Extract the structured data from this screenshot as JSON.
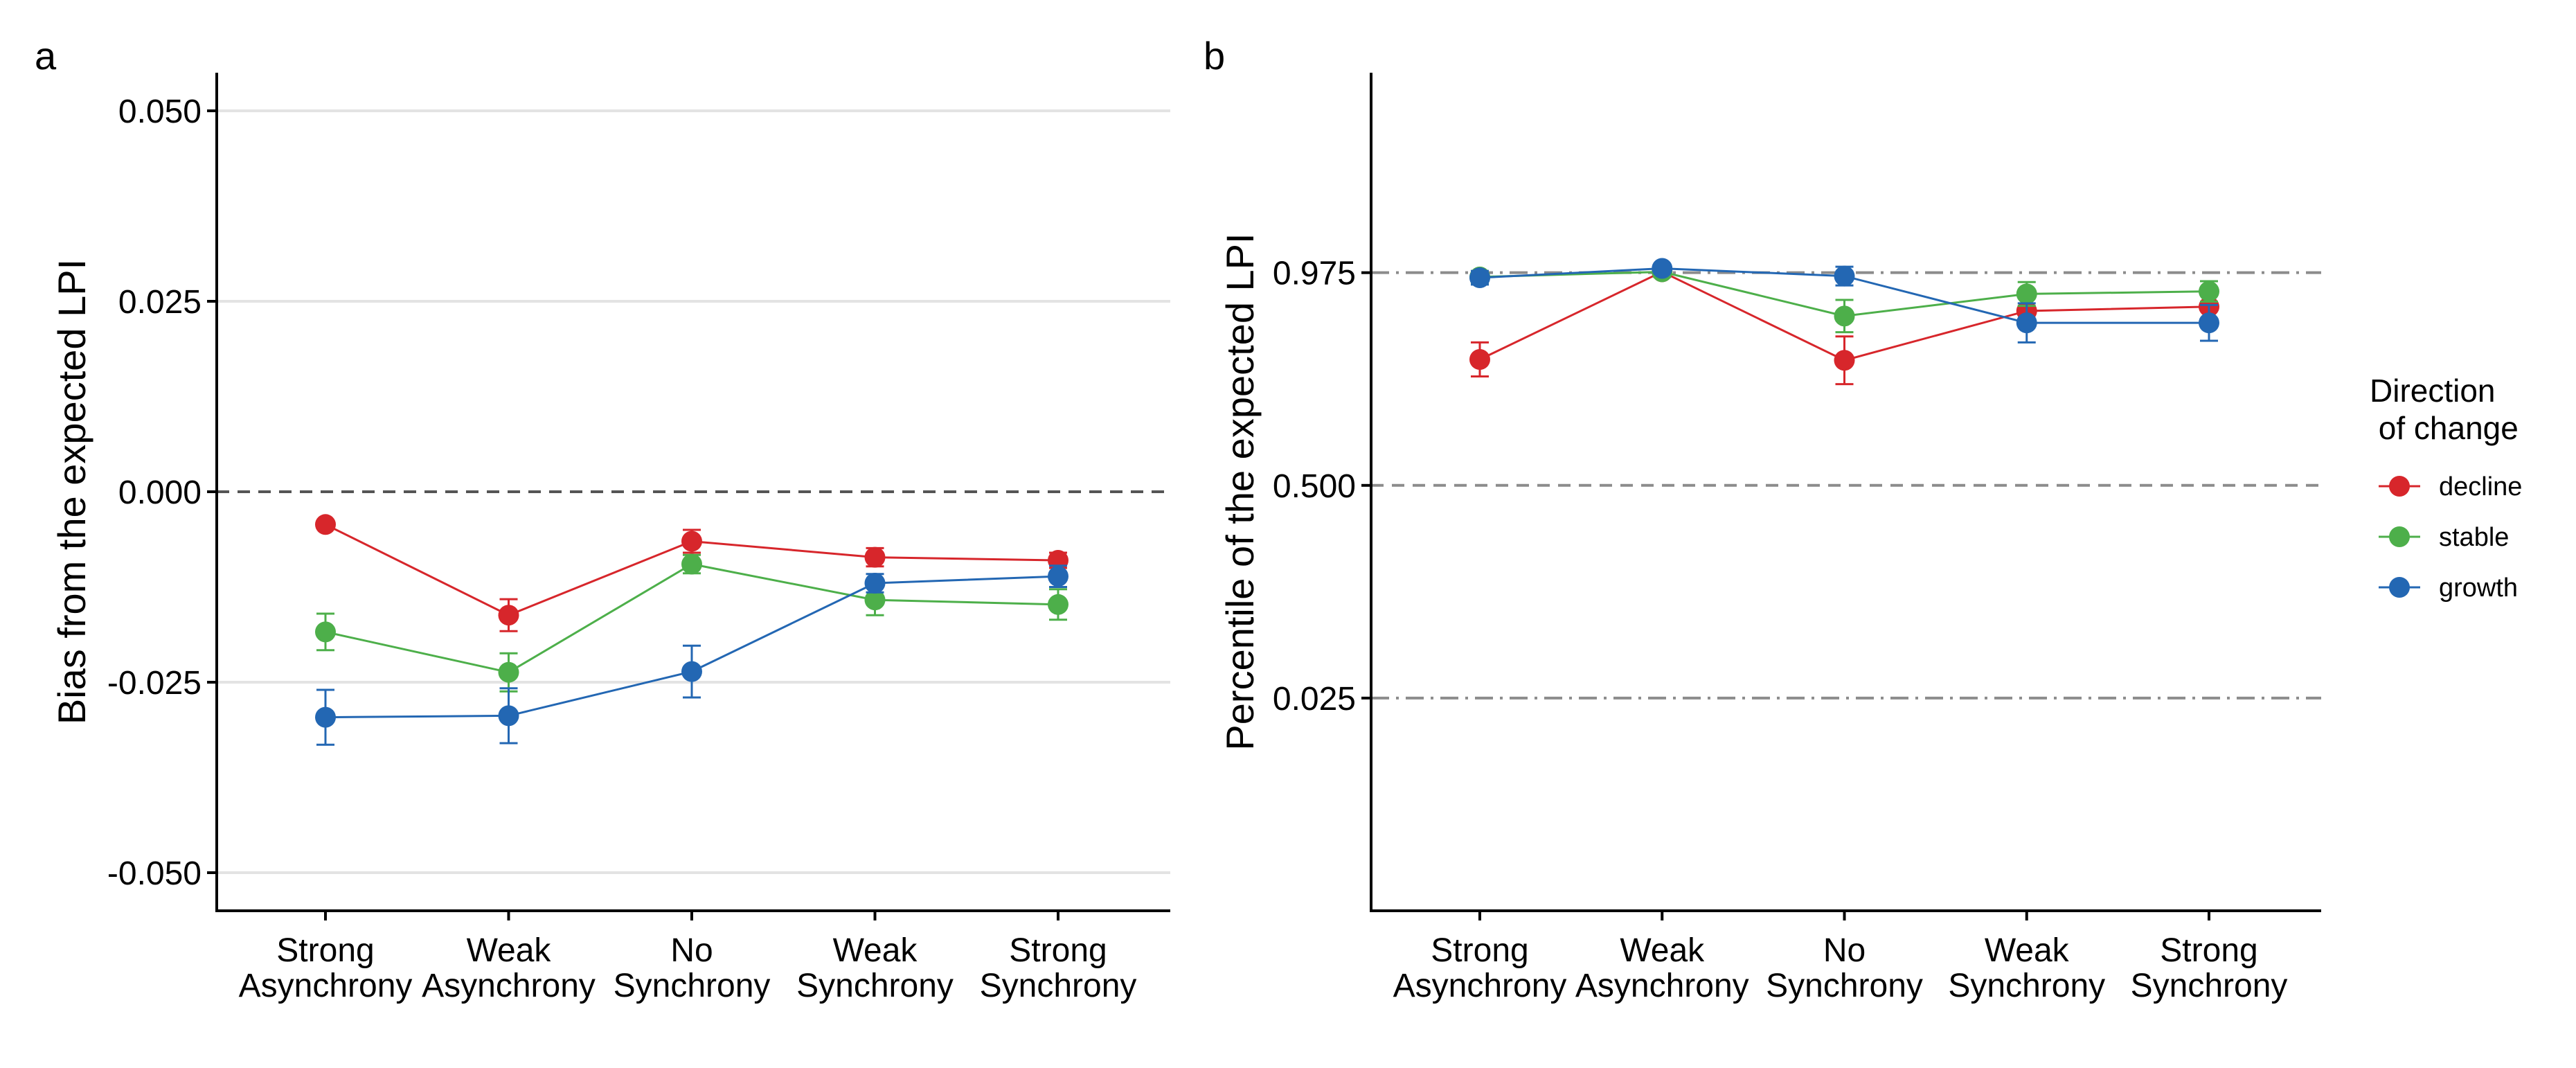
{
  "chart_data": [
    {
      "panel": "a",
      "type": "line",
      "categories": [
        "Strong\nAsynchrony",
        "Weak\nAsynchrony",
        "No\nSynchrony",
        "Weak\nSynchrony",
        "Strong\nSynchrony"
      ],
      "xlabel": "",
      "ylabel": "Bias from the expected LPI",
      "ylim": [
        -0.055,
        0.055
      ],
      "yticks": [
        -0.05,
        -0.025,
        0.0,
        0.025,
        0.05
      ],
      "ytick_labels": [
        "-0.050",
        "-0.025",
        "0.000",
        "0.025",
        "0.050"
      ],
      "grid": "horizontal",
      "reference_lines": [
        {
          "y": 0.0,
          "style": "dashed"
        }
      ],
      "series": [
        {
          "name": "decline",
          "color": "#d7262b",
          "values": [
            -0.0043,
            -0.0162,
            -0.0065,
            -0.0086,
            -0.009
          ],
          "err_low": [
            -0.0043,
            -0.0183,
            -0.008,
            -0.0098,
            -0.01
          ],
          "err_high": [
            -0.0043,
            -0.0141,
            -0.005,
            -0.0074,
            -0.008
          ]
        },
        {
          "name": "stable",
          "color": "#4daf4a",
          "values": [
            -0.0184,
            -0.0237,
            -0.0095,
            -0.0142,
            -0.0148
          ],
          "err_low": [
            -0.0208,
            -0.0262,
            -0.0107,
            -0.0162,
            -0.0168
          ],
          "err_high": [
            -0.016,
            -0.0212,
            -0.0083,
            -0.0122,
            -0.0128
          ]
        },
        {
          "name": "growth",
          "color": "#2367b3",
          "values": [
            -0.0296,
            -0.0294,
            -0.0236,
            -0.012,
            -0.0111
          ],
          "err_low": [
            -0.0332,
            -0.033,
            -0.027,
            -0.0132,
            -0.0125
          ],
          "err_high": [
            -0.026,
            -0.0258,
            -0.0202,
            -0.0108,
            -0.0097
          ]
        }
      ]
    },
    {
      "panel": "b",
      "type": "line",
      "categories": [
        "Strong\nAsynchrony",
        "Weak\nAsynchrony",
        "No\nSynchrony",
        "Weak\nSynchrony",
        "Strong\nSynchrony"
      ],
      "xlabel": "",
      "ylabel": "Percentile of the expected LPI",
      "yscale": "percentile (non-linear); tick positions: 0.025 at 0.25, 0.500 at 0.50, 0.975 at 0.75 of the axis-position scale",
      "axis_position_range": [
        0.0,
        0.985
      ],
      "yticks": [
        0.025,
        0.5,
        0.975
      ],
      "ytick_labels": [
        "0.025",
        "0.500",
        "0.975"
      ],
      "grid": "none",
      "reference_lines": [
        {
          "y": 0.025,
          "style": "dotdash"
        },
        {
          "y": 0.5,
          "style": "dashed"
        },
        {
          "y": 0.975,
          "style": "dotdash"
        }
      ],
      "series": [
        {
          "name": "decline",
          "color": "#d7262b",
          "axis_positions": [
            0.648,
            0.751,
            0.647,
            0.705,
            0.71
          ],
          "err_low_positions": [
            0.628,
            0.751,
            0.619,
            0.705,
            0.71
          ],
          "err_high_positions": [
            0.668,
            0.751,
            0.675,
            0.705,
            0.71
          ]
        },
        {
          "name": "stable",
          "color": "#4daf4a",
          "axis_positions": [
            0.745,
            0.751,
            0.699,
            0.725,
            0.728
          ],
          "err_low_positions": [
            0.738,
            0.745,
            0.68,
            0.711,
            0.716
          ],
          "err_high_positions": [
            0.752,
            0.757,
            0.718,
            0.739,
            0.74
          ]
        },
        {
          "name": "growth",
          "color": "#2367b3",
          "axis_positions": [
            0.744,
            0.755,
            0.746,
            0.691,
            0.691
          ],
          "err_low_positions": [
            0.736,
            0.755,
            0.735,
            0.668,
            0.67
          ],
          "err_high_positions": [
            0.752,
            0.755,
            0.757,
            0.714,
            0.712
          ]
        }
      ]
    }
  ],
  "legend": {
    "title_line1": "Direction",
    "title_line2": " of change",
    "items": [
      {
        "label": "decline",
        "color": "#d7262b"
      },
      {
        "label": "stable",
        "color": "#4daf4a"
      },
      {
        "label": "growth",
        "color": "#2367b3"
      }
    ]
  },
  "panel_letters": [
    "a",
    "b"
  ]
}
